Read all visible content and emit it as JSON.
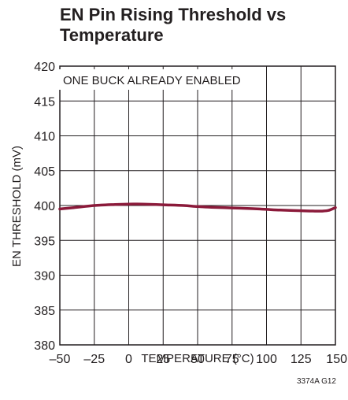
{
  "chart_data": {
    "type": "line",
    "title": "EN Pin Rising Threshold vs Temperature",
    "xlabel": "TEMPERATURE (°C)",
    "ylabel": "EN THRESHOLD (mV)",
    "xlim": [
      -50,
      150
    ],
    "ylim": [
      380,
      420
    ],
    "x_ticks": [
      "–50",
      "–25",
      "0",
      "25",
      "50",
      "75",
      "100",
      "125",
      "150"
    ],
    "y_ticks": [
      "420",
      "415",
      "410",
      "405",
      "400",
      "395",
      "390",
      "385",
      "380"
    ],
    "grid": true,
    "annotation": "ONE BUCK ALREADY ENABLED",
    "figure_code": "3374A G12",
    "series": [
      {
        "color": "#8b1a3a",
        "x": [
          -50,
          -40,
          -25,
          -10,
          0,
          10,
          25,
          40,
          50,
          60,
          75,
          90,
          100,
          110,
          125,
          135,
          140,
          145,
          150
        ],
        "y": [
          399.5,
          399.7,
          400.0,
          400.15,
          400.2,
          400.2,
          400.1,
          400.0,
          399.85,
          399.75,
          399.65,
          399.55,
          399.45,
          399.35,
          399.25,
          399.2,
          399.2,
          399.3,
          399.7
        ]
      }
    ]
  }
}
